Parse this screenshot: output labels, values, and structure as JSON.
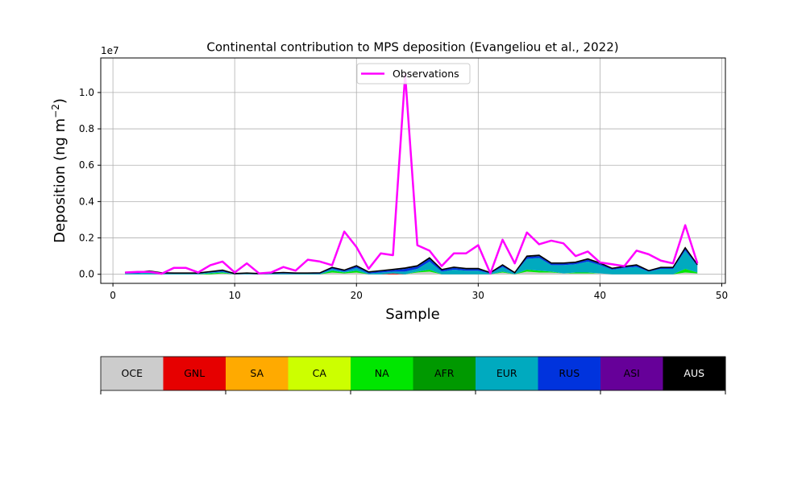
{
  "chart_data": {
    "type": "area",
    "title": "Continental contribution to MPS deposition (Evangeliou et al., 2022)",
    "xlabel": "Sample",
    "ylabel_main": "Deposition (ng m",
    "ylabel_sup": "−2",
    "ylabel_close": ")",
    "y_offset_label": "1e7",
    "xlim": [
      -1,
      50.3
    ],
    "ylim": [
      -0.05,
      1.19
    ],
    "y_unit_multiplier": 10000000,
    "grid": true,
    "legend_position": "upper center",
    "x_ticks": [
      0,
      10,
      20,
      30,
      40,
      50
    ],
    "x_tick_labels": [
      "0",
      "10",
      "20",
      "30",
      "40",
      "50"
    ],
    "y_ticks": [
      0.0,
      0.2,
      0.4,
      0.6,
      0.8,
      1.0
    ],
    "y_tick_labels": [
      "0.0",
      "0.2",
      "0.4",
      "0.6",
      "0.8",
      "1.0"
    ],
    "x": [
      1,
      2,
      3,
      4,
      5,
      6,
      7,
      8,
      9,
      10,
      11,
      12,
      13,
      14,
      15,
      16,
      17,
      18,
      19,
      20,
      21,
      22,
      23,
      24,
      25,
      26,
      27,
      28,
      29,
      30,
      31,
      32,
      33,
      34,
      35,
      36,
      37,
      38,
      39,
      40,
      41,
      42,
      43,
      44,
      45,
      46,
      47,
      48
    ],
    "observations": {
      "name": "Observations",
      "color": "#ff00ff",
      "values": [
        0.01,
        0.013,
        0.013,
        0.003,
        0.035,
        0.035,
        0.01,
        0.05,
        0.07,
        0.01,
        0.06,
        0.005,
        0.01,
        0.04,
        0.02,
        0.08,
        0.07,
        0.05,
        0.235,
        0.15,
        0.03,
        0.115,
        0.105,
        1.1,
        0.16,
        0.13,
        0.045,
        0.115,
        0.115,
        0.16,
        0.005,
        0.19,
        0.06,
        0.23,
        0.165,
        0.185,
        0.17,
        0.1,
        0.125,
        0.065,
        0.055,
        0.045,
        0.13,
        0.11,
        0.075,
        0.06,
        0.27,
        0.06
      ]
    },
    "series": [
      {
        "name": "OCE",
        "color": "#cccccc",
        "values": [
          0,
          0,
          0,
          0,
          0,
          0,
          0,
          0,
          0.005,
          0,
          0,
          0,
          0,
          0,
          0,
          0,
          0,
          0.01,
          0.005,
          0.01,
          0,
          0,
          0,
          0,
          0.01,
          0.015,
          0,
          0,
          0,
          0,
          0,
          0.01,
          0,
          0.015,
          0.01,
          0.01,
          0.005,
          0.005,
          0.005,
          0.005,
          0,
          0,
          0,
          0,
          0,
          0,
          0.01,
          0.005
        ]
      },
      {
        "name": "GNL",
        "color": "#e60000",
        "values": [
          0,
          0,
          0,
          0,
          0,
          0,
          0,
          0,
          0,
          0,
          0,
          0,
          0,
          0,
          0,
          0,
          0,
          0,
          0,
          0,
          0,
          0,
          0.005,
          0,
          0,
          0,
          0,
          0,
          0,
          0,
          0,
          0,
          0,
          0,
          0,
          0,
          0,
          0,
          0,
          0,
          0,
          0,
          0,
          0,
          0,
          0,
          0,
          0
        ]
      },
      {
        "name": "SA",
        "color": "#ffaa00",
        "values": [
          0,
          0,
          0,
          0,
          0,
          0,
          0,
          0,
          0,
          0,
          0,
          0,
          0,
          0,
          0,
          0,
          0,
          0,
          0,
          0,
          0,
          0,
          0,
          0,
          0,
          0,
          0,
          0,
          0,
          0,
          0,
          0,
          0,
          0,
          0,
          0,
          0,
          0,
          0,
          0,
          0,
          0,
          0,
          0,
          0,
          0,
          0,
          0
        ]
      },
      {
        "name": "CA",
        "color": "#ccff00",
        "values": [
          0,
          0,
          0,
          0,
          0,
          0,
          0,
          0,
          0,
          0,
          0,
          0,
          0,
          0,
          0,
          0,
          0,
          0,
          0,
          0,
          0,
          0,
          0,
          0,
          0,
          0,
          0,
          0,
          0,
          0,
          0,
          0,
          0,
          0,
          0,
          0,
          0,
          0,
          0,
          0,
          0,
          0,
          0,
          0,
          0,
          0,
          0,
          0
        ]
      },
      {
        "name": "NA",
        "color": "#00e600",
        "values": [
          0,
          0,
          0,
          0,
          0,
          0,
          0,
          0.005,
          0.005,
          0,
          0,
          0,
          0,
          0,
          0,
          0,
          0,
          0.01,
          0.005,
          0.01,
          0,
          0,
          0,
          0,
          0.005,
          0.01,
          0,
          0,
          0,
          0,
          0,
          0.005,
          0,
          0.01,
          0.01,
          0.005,
          0,
          0.005,
          0.005,
          0,
          0,
          0,
          0,
          0,
          0,
          0,
          0.02,
          0.005
        ]
      },
      {
        "name": "AFR",
        "color": "#009900",
        "values": [
          0,
          0,
          0,
          0,
          0,
          0,
          0,
          0,
          0,
          0,
          0,
          0,
          0,
          0,
          0,
          0,
          0,
          0,
          0,
          0,
          0,
          0,
          0,
          0,
          0,
          0,
          0,
          0,
          0,
          0,
          0,
          0,
          0,
          0,
          0,
          0,
          0,
          0,
          0,
          0,
          0,
          0,
          0,
          0,
          0,
          0,
          0,
          0
        ]
      },
      {
        "name": "EUR",
        "color": "#00aabf",
        "values": [
          0.005,
          0.005,
          0.01,
          0.004,
          0.003,
          0.003,
          0.003,
          0.005,
          0.005,
          0,
          0.003,
          0,
          0.003,
          0.004,
          0.003,
          0.003,
          0.003,
          0.01,
          0.005,
          0.015,
          0.005,
          0.01,
          0.01,
          0.015,
          0.015,
          0.045,
          0.015,
          0.025,
          0.02,
          0.02,
          0.005,
          0.025,
          0.005,
          0.06,
          0.07,
          0.035,
          0.045,
          0.045,
          0.06,
          0.045,
          0.025,
          0.035,
          0.04,
          0.015,
          0.03,
          0.03,
          0.1,
          0.035
        ]
      },
      {
        "name": "RUS",
        "color": "#0033dd",
        "values": [
          0.003,
          0.005,
          0.005,
          0.002,
          0.002,
          0.002,
          0.002,
          0.003,
          0.005,
          0.002,
          0.002,
          0.002,
          0.002,
          0.004,
          0.002,
          0.002,
          0.003,
          0.005,
          0.005,
          0.008,
          0.005,
          0.007,
          0.008,
          0.015,
          0.012,
          0.015,
          0.008,
          0.01,
          0.008,
          0.008,
          0.002,
          0.008,
          0.002,
          0.01,
          0.01,
          0.008,
          0.008,
          0.008,
          0.01,
          0.008,
          0.005,
          0.005,
          0.008,
          0.003,
          0.005,
          0.005,
          0.01,
          0.005
        ]
      },
      {
        "name": "ASI",
        "color": "#660099",
        "values": [
          0,
          0,
          0,
          0,
          0,
          0,
          0,
          0,
          0,
          0,
          0,
          0,
          0,
          0,
          0,
          0,
          0,
          0,
          0,
          0,
          0,
          0,
          0,
          0,
          0,
          0,
          0,
          0,
          0,
          0,
          0,
          0,
          0,
          0,
          0,
          0,
          0,
          0,
          0,
          0,
          0,
          0,
          0,
          0,
          0,
          0,
          0,
          0
        ]
      },
      {
        "name": "AUS",
        "color": "#000000",
        "values": [
          0.002,
          0.002,
          0.003,
          0.002,
          0.002,
          0.002,
          0.002,
          0.002,
          0.003,
          0.002,
          0.002,
          0.002,
          0.002,
          0.002,
          0.002,
          0.002,
          0.002,
          0.003,
          0.003,
          0.004,
          0.003,
          0.003,
          0.004,
          0.005,
          0.005,
          0.006,
          0.003,
          0.004,
          0.004,
          0.004,
          0.002,
          0.004,
          0.002,
          0.005,
          0.005,
          0.004,
          0.004,
          0.004,
          0.005,
          0.004,
          0.003,
          0.003,
          0.004,
          0.002,
          0.003,
          0.003,
          0.006,
          0.003
        ]
      }
    ]
  }
}
